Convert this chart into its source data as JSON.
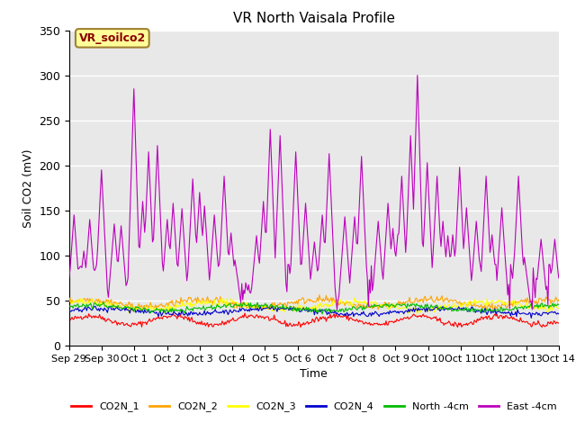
{
  "title": "VR North Vaisala Profile",
  "xlabel": "Time",
  "ylabel": "Soil CO2 (mV)",
  "ylim": [
    0,
    350
  ],
  "yticks": [
    0,
    50,
    100,
    150,
    200,
    250,
    300,
    350
  ],
  "xtick_labels": [
    "Sep 29",
    "Sep 30",
    "Oct 1",
    "Oct 2",
    "Oct 3",
    "Oct 4",
    "Oct 5",
    "Oct 6",
    "Oct 7",
    "Oct 8",
    "Oct 9",
    "Oct 10",
    "Oct 11",
    "Oct 12",
    "Oct 13",
    "Oct 14"
  ],
  "annotation_text": "VR_soilco2",
  "annotation_bg": "#FFFF99",
  "annotation_border": "#A08030",
  "series_colors": {
    "CO2N_1": "#FF0000",
    "CO2N_2": "#FFA500",
    "CO2N_3": "#FFFF00",
    "CO2N_4": "#0000CD",
    "North -4cm": "#00BB00",
    "East -4cm": "#BB00BB"
  },
  "bg_color": "#FFFFFF",
  "plot_bg_color": "#E8E8E8",
  "grid_color": "#FFFFFF",
  "title_fontsize": 11,
  "axis_fontsize": 9,
  "legend_fontsize": 8,
  "seed": 42,
  "num_points": 500
}
